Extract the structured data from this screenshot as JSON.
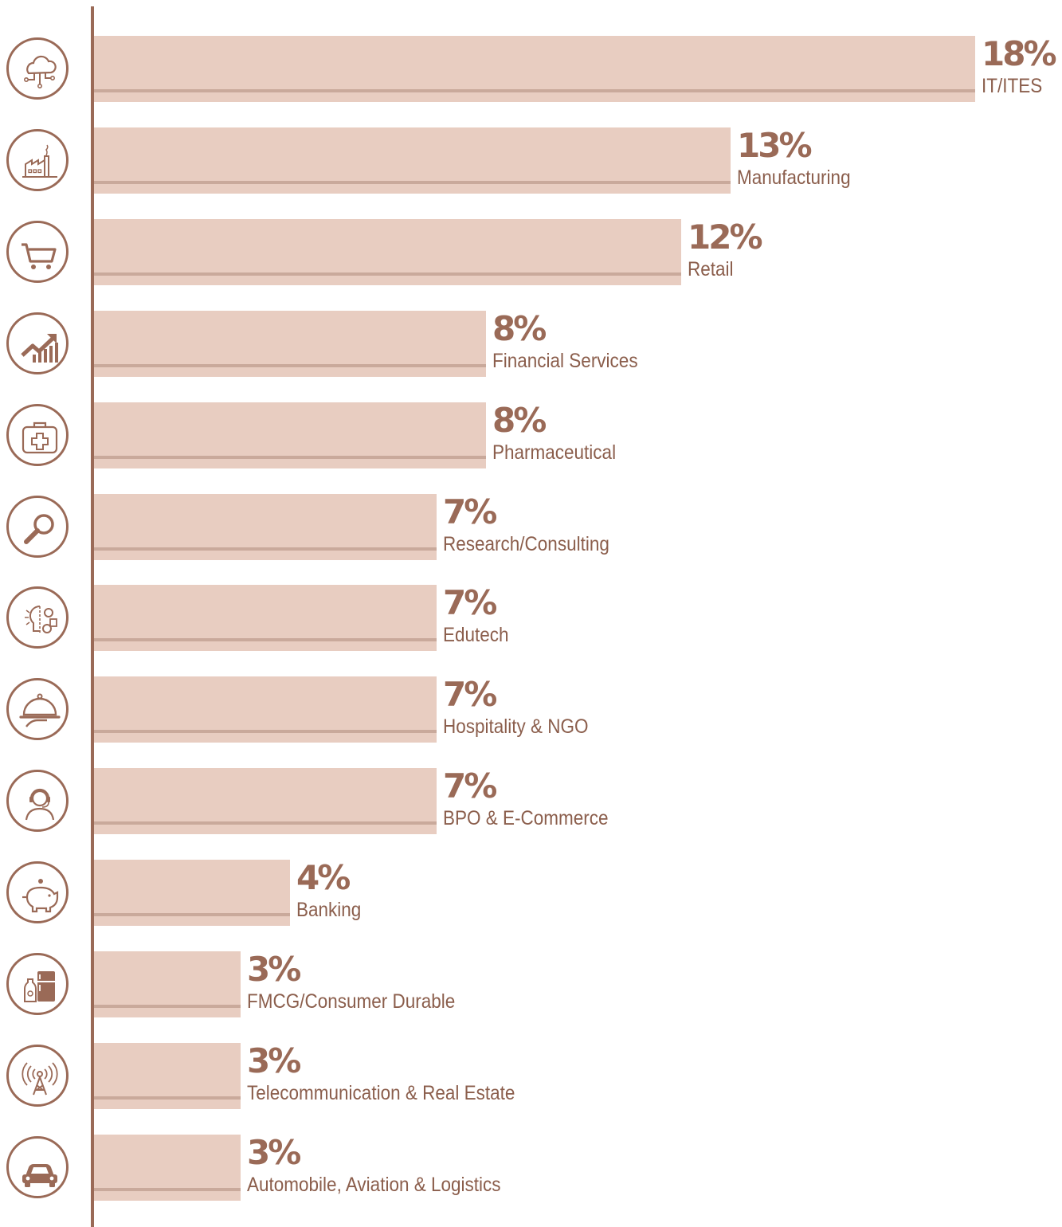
{
  "colors": {
    "accent": "#9a6a57",
    "bar": "#e8cdc1",
    "bar_shadow": "#c9a99b",
    "label": "#8b5e4c"
  },
  "chart_data": {
    "type": "bar",
    "orientation": "horizontal",
    "unit": "%",
    "xlim": [
      0,
      18
    ],
    "grid": false,
    "categories": [
      "IT/ITES",
      "Manufacturing",
      "Retail",
      "Financial Services",
      "Pharmaceutical",
      "Research/Consulting",
      "Edutech",
      "Hospitality & NGO",
      "BPO & E-Commerce",
      "Banking",
      "FMCG/Consumer Durable",
      "Telecommunication & Real Estate",
      "Automobile, Aviation & Logistics"
    ],
    "values": [
      18,
      13,
      12,
      8,
      8,
      7,
      7,
      7,
      7,
      4,
      3,
      3,
      3
    ],
    "value_labels": [
      "18%",
      "13%",
      "12%",
      "8%",
      "8%",
      "7%",
      "7%",
      "7%",
      "7%",
      "4%",
      "3%",
      "3%",
      "3%"
    ],
    "icons": [
      "cloud-circuit-icon",
      "factory-icon",
      "shopping-cart-icon",
      "growth-chart-icon",
      "first-aid-kit-icon",
      "magnifier-icon",
      "brain-gears-icon",
      "food-cloche-icon",
      "call-center-agent-icon",
      "piggy-bank-icon",
      "bottle-fridge-icon",
      "radio-tower-icon",
      "car-icon"
    ]
  }
}
